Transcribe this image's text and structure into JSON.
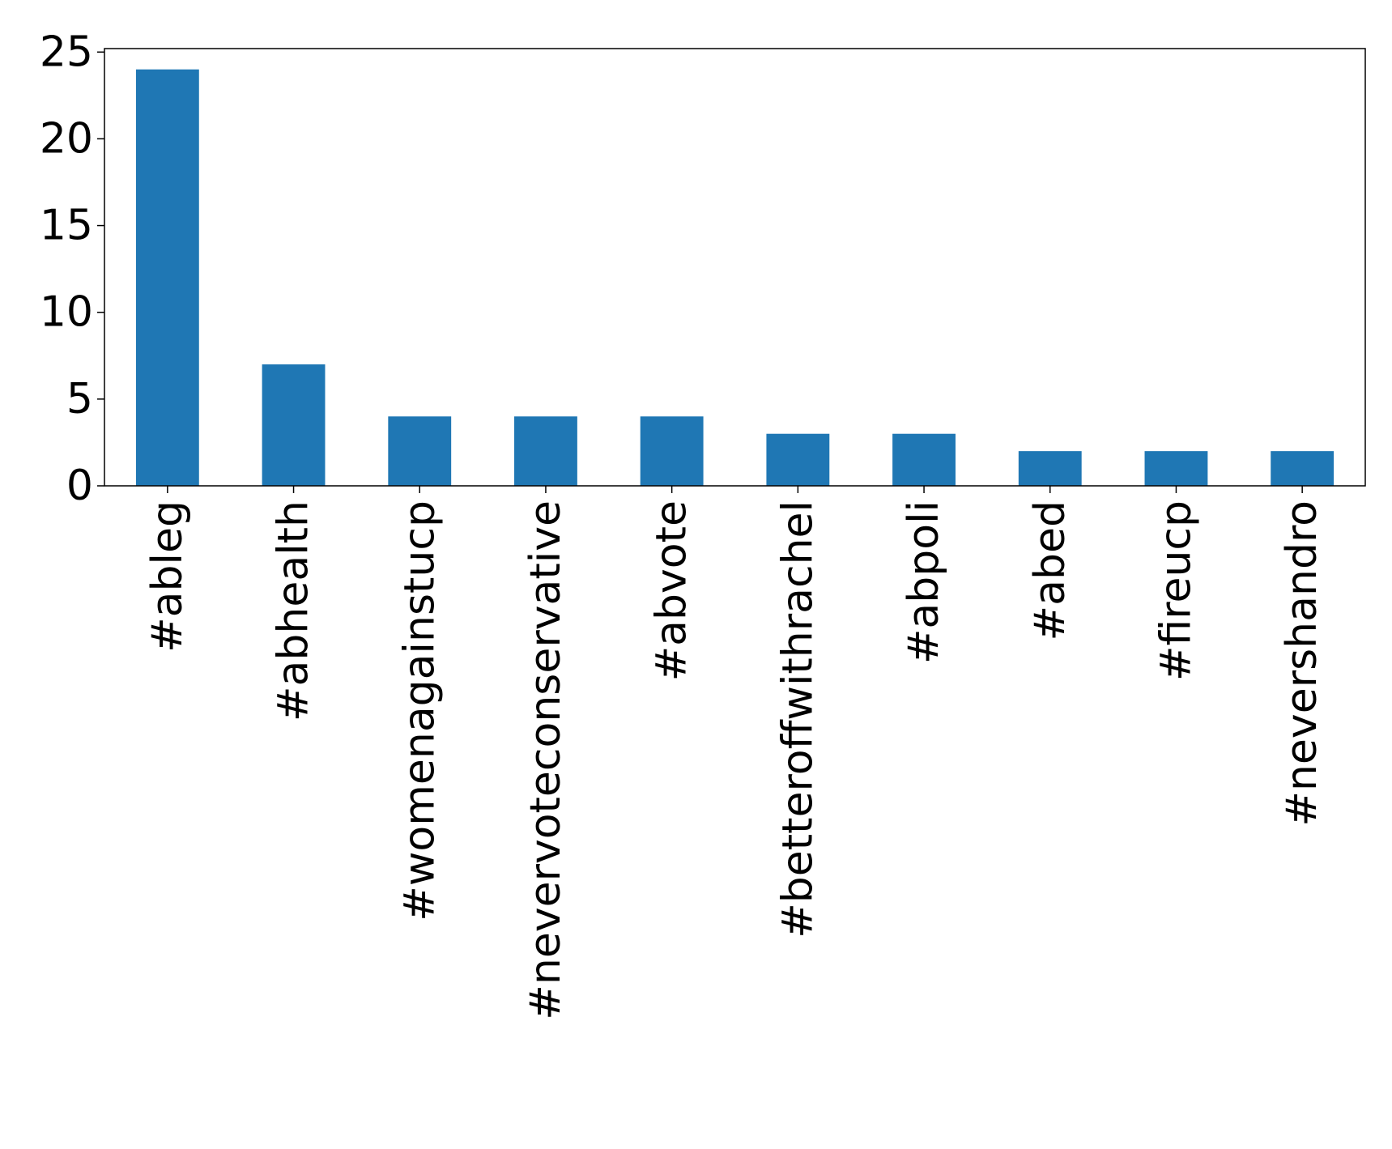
{
  "chart_data": {
    "type": "bar",
    "title": "",
    "xlabel": "",
    "ylabel": "",
    "categories": [
      "#ableg",
      "#abhealth",
      "#womenagainstucp",
      "#nevervoteconservative",
      "#abvote",
      "#betteroffwithrachel",
      "#abpoli",
      "#abed",
      "#fireucp",
      "#nevershandro"
    ],
    "values": [
      24,
      7,
      4,
      4,
      4,
      3,
      3,
      2,
      2,
      2
    ],
    "ylim": [
      0,
      25.2
    ],
    "yticks": [
      0,
      5,
      10,
      15,
      20,
      25
    ],
    "grid": false,
    "legend": "none",
    "bar_color": "#1f77b4"
  }
}
